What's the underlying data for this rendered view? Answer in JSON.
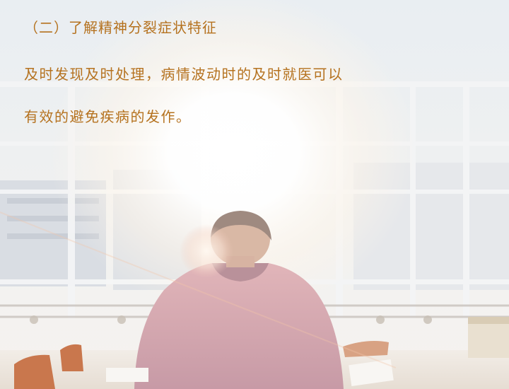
{
  "slide": {
    "heading": "（二）了解精神分裂症状特征",
    "paragraph_lines": [
      "及时发现及时处理，病情波动时的及时就医可以",
      "有效的避免疾病的发作。"
    ]
  },
  "colors": {
    "text": "#b5721f",
    "background": "#f3f1ee"
  },
  "background_image": {
    "icon": "photo-man-at-desk-by-sunlit-window"
  }
}
